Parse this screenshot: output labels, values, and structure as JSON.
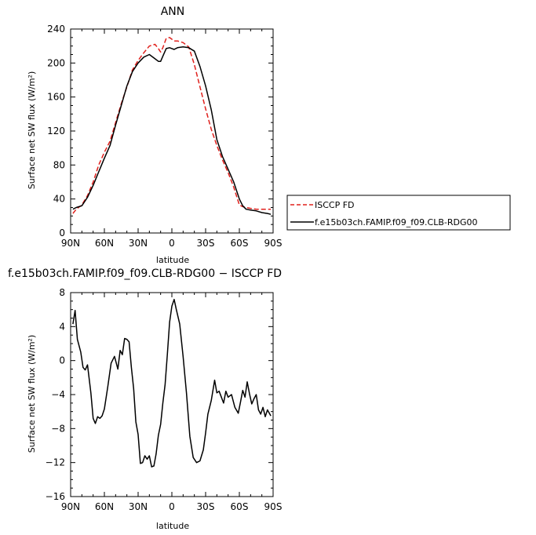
{
  "chart_data": [
    {
      "type": "line",
      "title": "ANN",
      "xlabel": "latitude",
      "ylabel": "Surface net SW flux (W/m²)",
      "xlim": [
        90,
        -90
      ],
      "ylim": [
        0,
        240
      ],
      "x_ticks": [
        90,
        60,
        30,
        0,
        -30,
        -60,
        -90
      ],
      "x_tick_labels": [
        "90N",
        "60N",
        "30N",
        "0",
        "30S",
        "60S",
        "90S"
      ],
      "y_ticks": [
        0,
        40,
        80,
        120,
        160,
        200,
        240
      ],
      "y_tick_labels": [
        "0",
        "40",
        "80",
        "120",
        "160",
        "200",
        "240"
      ],
      "legend_placement": "right",
      "series": [
        {
          "name": "ISCCP FD",
          "color": "#e0201c",
          "style": "dashed",
          "x": [
            88,
            85,
            80,
            75,
            70,
            65,
            60,
            55,
            50,
            45,
            40,
            35,
            30,
            25,
            20,
            15,
            12,
            10,
            8,
            5,
            2,
            0,
            -2,
            -5,
            -10,
            -15,
            -20,
            -25,
            -30,
            -35,
            -40,
            -45,
            -50,
            -55,
            -60,
            -63,
            -66,
            -70,
            -75,
            -80,
            -85,
            -88
          ],
          "y": [
            23,
            28,
            33,
            44,
            60,
            80,
            95,
            108,
            130,
            152,
            172,
            192,
            203,
            212,
            220,
            222,
            217,
            213,
            218,
            229,
            230,
            228,
            226,
            226,
            224,
            219,
            198,
            172,
            146,
            122,
            103,
            86,
            71,
            54,
            33,
            31,
            30,
            29,
            28,
            28,
            28,
            28
          ]
        },
        {
          "name": "f.e15b03ch.FAMIP.f09_f09.CLB-RDG00",
          "color": "#000000",
          "style": "solid",
          "x": [
            88,
            85,
            80,
            75,
            70,
            65,
            60,
            55,
            50,
            45,
            40,
            35,
            30,
            25,
            20,
            15,
            12,
            10,
            8,
            5,
            2,
            0,
            -2,
            -5,
            -10,
            -15,
            -20,
            -25,
            -30,
            -35,
            -40,
            -45,
            -50,
            -55,
            -60,
            -63,
            -66,
            -70,
            -75,
            -80,
            -85,
            -88
          ],
          "y": [
            28,
            30,
            32,
            42,
            56,
            72,
            88,
            103,
            127,
            150,
            173,
            190,
            200,
            207,
            210,
            205,
            202,
            202,
            208,
            217,
            218,
            217,
            216,
            218,
            219,
            218,
            214,
            196,
            173,
            145,
            110,
            90,
            75,
            60,
            40,
            32,
            28,
            27,
            26,
            24,
            23,
            22
          ]
        }
      ]
    },
    {
      "type": "line",
      "title": "f.e15b03ch.FAMIP.f09_f09.CLB-RDG00 − ISCCP FD",
      "xlabel": "latitude",
      "ylabel": "Surface net SW flux (W/m²)",
      "xlim": [
        90,
        -90
      ],
      "ylim": [
        -16,
        8
      ],
      "x_ticks": [
        90,
        60,
        30,
        0,
        -30,
        -60,
        -90
      ],
      "x_tick_labels": [
        "90N",
        "60N",
        "30N",
        "0",
        "30S",
        "60S",
        "90S"
      ],
      "y_ticks": [
        -16,
        -12,
        -8,
        -4,
        0,
        4,
        8
      ],
      "y_tick_labels": [
        "−16",
        "−12",
        "−8",
        "−4",
        "0",
        "4",
        "8"
      ],
      "series": [
        {
          "color": "#000000",
          "style": "solid",
          "x": [
            88,
            86,
            84,
            81,
            79,
            77,
            75,
            72,
            70,
            68,
            66,
            64,
            62,
            60,
            57,
            54,
            51,
            48,
            46,
            44,
            42,
            40,
            38,
            36,
            34,
            32,
            30,
            28,
            26,
            24,
            22,
            20,
            18,
            16,
            14,
            12,
            10,
            8,
            6,
            4,
            2,
            0,
            -2,
            -4,
            -7,
            -10,
            -13,
            -16,
            -19,
            -22,
            -25,
            -28,
            -30,
            -32,
            -35,
            -38,
            -40,
            -42,
            -44,
            -46,
            -48,
            -50,
            -53,
            -56,
            -59,
            -61,
            -63,
            -65,
            -67,
            -69,
            -71,
            -73,
            -75,
            -77,
            -79,
            -81,
            -83,
            -85,
            -88
          ],
          "y": [
            4.3,
            5.9,
            2.5,
            1.0,
            -0.8,
            -1.1,
            -0.5,
            -3.8,
            -6.8,
            -7.4,
            -6.6,
            -6.8,
            -6.5,
            -5.7,
            -3.1,
            -0.3,
            0.5,
            -1.0,
            1.2,
            0.7,
            2.6,
            2.5,
            2.2,
            -0.8,
            -3.3,
            -7.2,
            -8.7,
            -12.1,
            -12.0,
            -11.2,
            -11.6,
            -11.2,
            -12.5,
            -12.4,
            -11.0,
            -8.8,
            -7.5,
            -5.0,
            -2.8,
            0.8,
            4.5,
            6.4,
            7.2,
            6.0,
            4.3,
            0.5,
            -3.8,
            -8.9,
            -11.4,
            -12.0,
            -11.8,
            -10.5,
            -8.5,
            -6.3,
            -4.7,
            -2.3,
            -3.8,
            -3.6,
            -4.3,
            -5.0,
            -3.6,
            -4.3,
            -4.0,
            -5.5,
            -6.2,
            -4.9,
            -3.5,
            -4.3,
            -2.5,
            -3.9,
            -5.1,
            -4.5,
            -4.0,
            -5.8,
            -6.3,
            -5.5,
            -6.6,
            -5.8,
            -6.5
          ]
        }
      ]
    }
  ]
}
